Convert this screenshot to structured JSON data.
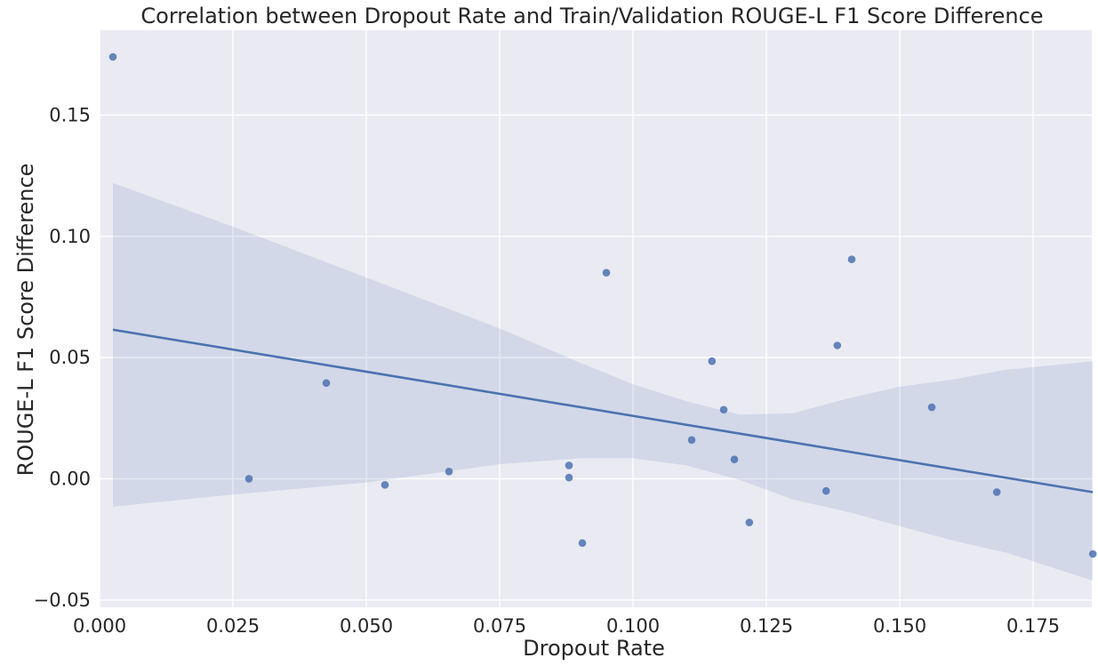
{
  "chart_data": {
    "type": "scatter",
    "title": "Correlation between Dropout Rate and Train/Validation ROUGE-L F1 Score Difference",
    "xlabel": "Dropout Rate",
    "ylabel": "ROUGE-L F1 Score Difference",
    "xlim": [
      0.0,
      0.186
    ],
    "ylim": [
      -0.053,
      0.185
    ],
    "xticks": [
      0.0,
      0.025,
      0.05,
      0.075,
      0.1,
      0.125,
      0.15,
      0.175
    ],
    "xtick_labels": [
      "0.000",
      "0.025",
      "0.050",
      "0.075",
      "0.100",
      "0.125",
      "0.150",
      "0.175"
    ],
    "yticks": [
      -0.05,
      0.0,
      0.05,
      0.1,
      0.15
    ],
    "ytick_labels": [
      "−0.05",
      "0.00",
      "0.05",
      "0.10",
      "0.15"
    ],
    "grid": true,
    "points": [
      {
        "x": 0.0025,
        "y": 0.174
      },
      {
        "x": 0.028,
        "y": 0.0
      },
      {
        "x": 0.0425,
        "y": 0.0395
      },
      {
        "x": 0.0535,
        "y": -0.0025
      },
      {
        "x": 0.0655,
        "y": 0.003
      },
      {
        "x": 0.088,
        "y": 0.0055
      },
      {
        "x": 0.088,
        "y": 0.0005
      },
      {
        "x": 0.0905,
        "y": -0.0265
      },
      {
        "x": 0.095,
        "y": 0.085
      },
      {
        "x": 0.111,
        "y": 0.016
      },
      {
        "x": 0.1148,
        "y": 0.0485
      },
      {
        "x": 0.117,
        "y": 0.0285
      },
      {
        "x": 0.119,
        "y": 0.008
      },
      {
        "x": 0.1218,
        "y": -0.018
      },
      {
        "x": 0.1362,
        "y": -0.005
      },
      {
        "x": 0.1383,
        "y": 0.055
      },
      {
        "x": 0.141,
        "y": 0.0905
      },
      {
        "x": 0.156,
        "y": 0.0295
      },
      {
        "x": 0.1682,
        "y": -0.0055
      },
      {
        "x": 0.1862,
        "y": -0.031
      }
    ],
    "regression": {
      "x": [
        0.0025,
        0.1862
      ],
      "y": [
        0.0615,
        -0.0055
      ]
    },
    "confidence_band": {
      "x": [
        0.0025,
        0.025,
        0.05,
        0.075,
        0.09,
        0.1,
        0.11,
        0.12,
        0.13,
        0.14,
        0.15,
        0.16,
        0.17,
        0.1862
      ],
      "upper": [
        0.122,
        0.104,
        0.083,
        0.062,
        0.048,
        0.039,
        0.032,
        0.0265,
        0.027,
        0.033,
        0.038,
        0.041,
        0.045,
        0.0485
      ],
      "lower": [
        -0.0115,
        -0.0065,
        -0.0015,
        0.006,
        0.0085,
        0.0085,
        0.0055,
        -0.0005,
        -0.0085,
        -0.0135,
        -0.0195,
        -0.0255,
        -0.0305,
        -0.042
      ]
    },
    "colors": {
      "background": "#eaeaf2",
      "grid": "#ffffff",
      "points": "#4c72b0",
      "line": "#4c72b0",
      "band": "#4c72b0"
    }
  }
}
